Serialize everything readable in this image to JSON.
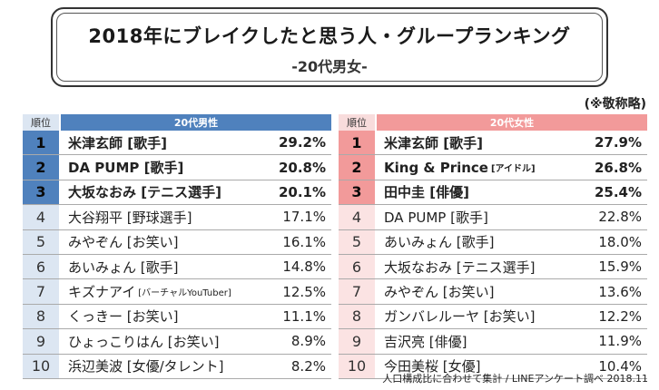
{
  "title": "2018年にブレイクしたと思う人・グループランキング",
  "subtitle": "-20代男女-",
  "note": "(※敬称略)",
  "rank_header": "順位",
  "male": {
    "header": "20代男性",
    "rows": [
      {
        "rank": "1",
        "name": "米津玄師 [歌手]",
        "tag": "",
        "pct": "29.2%"
      },
      {
        "rank": "2",
        "name": "DA PUMP [歌手]",
        "tag": "",
        "pct": "20.8%"
      },
      {
        "rank": "3",
        "name": "大坂なおみ [テニス選手]",
        "tag": "",
        "pct": "20.1%"
      },
      {
        "rank": "4",
        "name": "大谷翔平 [野球選手]",
        "tag": "",
        "pct": "17.1%"
      },
      {
        "rank": "5",
        "name": "みやぞん [お笑い]",
        "tag": "",
        "pct": "16.1%"
      },
      {
        "rank": "6",
        "name": "あいみょん [歌手]",
        "tag": "",
        "pct": "14.8%"
      },
      {
        "rank": "7",
        "name": "キズナアイ",
        "tag": "[バーチャルYouTuber]",
        "pct": "12.5%"
      },
      {
        "rank": "8",
        "name": "くっきー [お笑い]",
        "tag": "",
        "pct": "11.1%"
      },
      {
        "rank": "9",
        "name": "ひょっこりはん [お笑い]",
        "tag": "",
        "pct": "8.9%"
      },
      {
        "rank": "10",
        "name": "浜辺美波 [女優/タレント]",
        "tag": "",
        "pct": "8.2%"
      }
    ]
  },
  "female": {
    "header": "20代女性",
    "rows": [
      {
        "rank": "1",
        "name": "米津玄師 [歌手]",
        "tag": "",
        "pct": "27.9%"
      },
      {
        "rank": "2",
        "name": "King & Prince",
        "tag": "[アイドル]",
        "pct": "26.8%"
      },
      {
        "rank": "3",
        "name": "田中圭 [俳優]",
        "tag": "",
        "pct": "25.4%"
      },
      {
        "rank": "4",
        "name": "DA PUMP [歌手]",
        "tag": "",
        "pct": "22.8%"
      },
      {
        "rank": "5",
        "name": "あいみょん [歌手]",
        "tag": "",
        "pct": "18.0%"
      },
      {
        "rank": "6",
        "name": "大坂なおみ [テニス選手]",
        "tag": "",
        "pct": "15.9%"
      },
      {
        "rank": "7",
        "name": "みやぞん [お笑い]",
        "tag": "",
        "pct": "13.6%"
      },
      {
        "rank": "8",
        "name": "ガンバレルーヤ [お笑い]",
        "tag": "",
        "pct": "12.2%"
      },
      {
        "rank": "9",
        "name": "吉沢亮 [俳優]",
        "tag": "",
        "pct": "11.9%"
      },
      {
        "rank": "10",
        "name": "今田美桜 [女優]",
        "tag": "",
        "pct": "10.4%"
      }
    ]
  },
  "source": "人口構成比に合わせて集計 / LINEアンケート調べ 2018.11",
  "colors": {
    "male_accent": "#4f81bd",
    "male_light": "#dce6f2",
    "female_accent": "#f29a9a",
    "female_light": "#fbe3e3"
  }
}
